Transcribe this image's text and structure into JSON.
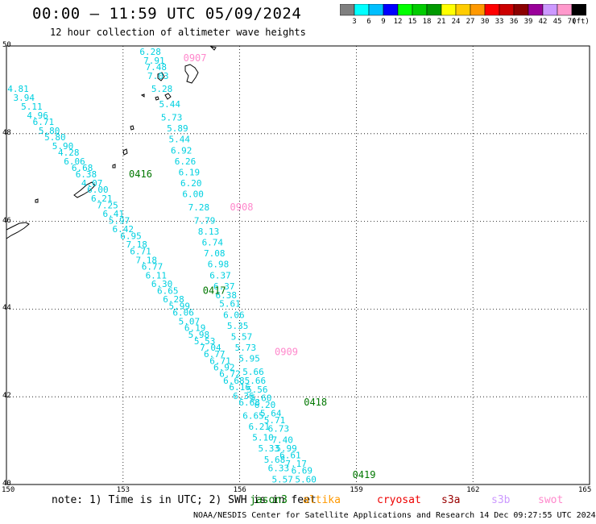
{
  "header": {
    "title": "00:00 – 11:59 UTC 05/09/2024",
    "subtitle": "12 hour collection of altimeter wave heights"
  },
  "colorbar": {
    "colors": [
      "#7f7f7f",
      "#00ffff",
      "#00bfff",
      "#0000ff",
      "#00ff00",
      "#00cc00",
      "#009900",
      "#ffff00",
      "#ffcc00",
      "#ff9900",
      "#ff0000",
      "#cc0000",
      "#8b0000",
      "#990099",
      "#cc99ff",
      "#ff99cc",
      "#000000"
    ],
    "labels": [
      "3",
      "6",
      "9",
      "12",
      "15",
      "18",
      "21",
      "24",
      "27",
      "30",
      "33",
      "36",
      "39",
      "42",
      "45",
      "70",
      "(ft)"
    ]
  },
  "map": {
    "lon_range": [
      150,
      165
    ],
    "lat_range": [
      40,
      50
    ],
    "x_ticks": [
      "150",
      "153",
      "156",
      "159",
      "162",
      "165"
    ],
    "y_ticks": [
      "50",
      "48",
      "46",
      "44",
      "42",
      "40"
    ],
    "grid_lons": [
      153,
      156,
      159,
      162
    ],
    "grid_lats": [
      48,
      46,
      44,
      42
    ],
    "track_labels": [
      {
        "text": "0907",
        "color": "#ff88cc",
        "lon": 154.55,
        "lat": 49.65
      },
      {
        "text": "0416",
        "color": "#007700",
        "lon": 153.15,
        "lat": 47.0
      },
      {
        "text": "0908",
        "color": "#ff88cc",
        "lon": 155.75,
        "lat": 46.25
      },
      {
        "text": "0417",
        "color": "#007700",
        "lon": 155.05,
        "lat": 44.35
      },
      {
        "text": "0909",
        "color": "#ff88cc",
        "lon": 156.9,
        "lat": 42.95
      },
      {
        "text": "0418",
        "color": "#007700",
        "lon": 157.65,
        "lat": 41.8
      },
      {
        "text": "0419",
        "color": "#007700",
        "lon": 158.9,
        "lat": 40.15
      }
    ],
    "swh_color": "#00d0e0",
    "swh_values": [
      {
        "text": "6.28",
        "lon": 153.7,
        "lat": 49.8
      },
      {
        "text": "7.91",
        "lon": 153.8,
        "lat": 49.6
      },
      {
        "text": "7.48",
        "lon": 153.85,
        "lat": 49.45
      },
      {
        "text": "7.03",
        "lon": 153.9,
        "lat": 49.25
      },
      {
        "text": "5.28",
        "lon": 154.0,
        "lat": 48.95
      },
      {
        "text": "5.44",
        "lon": 154.2,
        "lat": 48.6
      },
      {
        "text": "5.73",
        "lon": 154.25,
        "lat": 48.3
      },
      {
        "text": "5.89",
        "lon": 154.4,
        "lat": 48.05
      },
      {
        "text": "5.44",
        "lon": 154.45,
        "lat": 47.8
      },
      {
        "text": "6.92",
        "lon": 154.5,
        "lat": 47.55
      },
      {
        "text": "6.26",
        "lon": 154.6,
        "lat": 47.3
      },
      {
        "text": "6.19",
        "lon": 154.7,
        "lat": 47.05
      },
      {
        "text": "6.20",
        "lon": 154.75,
        "lat": 46.8
      },
      {
        "text": "6.00",
        "lon": 154.8,
        "lat": 46.55
      },
      {
        "text": "7.28",
        "lon": 154.95,
        "lat": 46.25
      },
      {
        "text": "7.79",
        "lon": 155.1,
        "lat": 45.95
      },
      {
        "text": "8.13",
        "lon": 155.2,
        "lat": 45.7
      },
      {
        "text": "6.74",
        "lon": 155.3,
        "lat": 45.45
      },
      {
        "text": "7.08",
        "lon": 155.35,
        "lat": 45.2
      },
      {
        "text": "6.98",
        "lon": 155.45,
        "lat": 44.95
      },
      {
        "text": "6.37",
        "lon": 155.5,
        "lat": 44.7
      },
      {
        "text": "6.37",
        "lon": 155.6,
        "lat": 44.45
      },
      {
        "text": "6.38",
        "lon": 155.65,
        "lat": 44.25
      },
      {
        "text": "5.61",
        "lon": 155.75,
        "lat": 44.05
      },
      {
        "text": "6.06",
        "lon": 155.85,
        "lat": 43.8
      },
      {
        "text": "5.35",
        "lon": 155.95,
        "lat": 43.55
      },
      {
        "text": "5.57",
        "lon": 156.05,
        "lat": 43.3
      },
      {
        "text": "5.73",
        "lon": 156.15,
        "lat": 43.05
      },
      {
        "text": "5.95",
        "lon": 156.25,
        "lat": 42.8
      },
      {
        "text": "5.66",
        "lon": 156.35,
        "lat": 42.5
      },
      {
        "text": "5.66",
        "lon": 156.4,
        "lat": 42.3
      },
      {
        "text": "5.56",
        "lon": 156.45,
        "lat": 42.1
      },
      {
        "text": "5.60",
        "lon": 156.55,
        "lat": 41.9
      },
      {
        "text": "6.20",
        "lon": 156.65,
        "lat": 41.75
      },
      {
        "text": "5.64",
        "lon": 156.8,
        "lat": 41.55
      },
      {
        "text": "5.71",
        "lon": 156.9,
        "lat": 41.4
      },
      {
        "text": "6.73",
        "lon": 157.0,
        "lat": 41.2
      },
      {
        "text": "7.40",
        "lon": 157.1,
        "lat": 40.95
      },
      {
        "text": "5.99",
        "lon": 157.2,
        "lat": 40.75
      },
      {
        "text": "6.61",
        "lon": 157.3,
        "lat": 40.6
      },
      {
        "text": "7.17",
        "lon": 157.45,
        "lat": 40.4
      },
      {
        "text": "6.69",
        "lon": 157.6,
        "lat": 40.25
      },
      {
        "text": "5.60",
        "lon": 157.7,
        "lat": 40.05
      },
      {
        "text": "4.81",
        "lon": 150.3,
        "lat": 48.95
      },
      {
        "text": "3.94",
        "lon": 150.45,
        "lat": 48.75
      },
      {
        "text": "5.11",
        "lon": 150.65,
        "lat": 48.55
      },
      {
        "text": "4.96",
        "lon": 150.8,
        "lat": 48.35
      },
      {
        "text": "6.71",
        "lon": 150.95,
        "lat": 48.2
      },
      {
        "text": "5.80",
        "lon": 151.1,
        "lat": 48.0
      },
      {
        "text": "5.80",
        "lon": 151.25,
        "lat": 47.85
      },
      {
        "text": "5.90",
        "lon": 151.45,
        "lat": 47.65
      },
      {
        "text": "4.28",
        "lon": 151.6,
        "lat": 47.5
      },
      {
        "text": "6.06",
        "lon": 151.75,
        "lat": 47.3
      },
      {
        "text": "6.68",
        "lon": 151.95,
        "lat": 47.15
      },
      {
        "text": "6.38",
        "lon": 152.05,
        "lat": 47.0
      },
      {
        "text": "4.07",
        "lon": 152.2,
        "lat": 46.8
      },
      {
        "text": "6.00",
        "lon": 152.35,
        "lat": 46.65
      },
      {
        "text": "6.21",
        "lon": 152.45,
        "lat": 46.45
      },
      {
        "text": "7.25",
        "lon": 152.6,
        "lat": 46.3
      },
      {
        "text": "6.41",
        "lon": 152.75,
        "lat": 46.1
      },
      {
        "text": "5.97",
        "lon": 152.9,
        "lat": 45.95
      },
      {
        "text": "6.42",
        "lon": 153.0,
        "lat": 45.75
      },
      {
        "text": "6.95",
        "lon": 153.2,
        "lat": 45.6
      },
      {
        "text": "7.18",
        "lon": 153.35,
        "lat": 45.4
      },
      {
        "text": "6.71",
        "lon": 153.45,
        "lat": 45.25
      },
      {
        "text": "7.18",
        "lon": 153.6,
        "lat": 45.05
      },
      {
        "text": "6.77",
        "lon": 153.75,
        "lat": 44.9
      },
      {
        "text": "6.11",
        "lon": 153.85,
        "lat": 44.7
      },
      {
        "text": "6.30",
        "lon": 154.0,
        "lat": 44.5
      },
      {
        "text": "6.65",
        "lon": 154.15,
        "lat": 44.35
      },
      {
        "text": "6.28",
        "lon": 154.3,
        "lat": 44.15
      },
      {
        "text": "5.99",
        "lon": 154.45,
        "lat": 44.0
      },
      {
        "text": "6.06",
        "lon": 154.55,
        "lat": 43.85
      },
      {
        "text": "5.07",
        "lon": 154.7,
        "lat": 43.65
      },
      {
        "text": "6.19",
        "lon": 154.85,
        "lat": 43.5
      },
      {
        "text": "5.98",
        "lon": 154.95,
        "lat": 43.35
      },
      {
        "text": "5.53",
        "lon": 155.1,
        "lat": 43.2
      },
      {
        "text": "7.04",
        "lon": 155.25,
        "lat": 43.05
      },
      {
        "text": "6.77",
        "lon": 155.35,
        "lat": 42.9
      },
      {
        "text": "6.71",
        "lon": 155.5,
        "lat": 42.75
      },
      {
        "text": "6.92",
        "lon": 155.6,
        "lat": 42.6
      },
      {
        "text": "6.72",
        "lon": 155.75,
        "lat": 42.45
      },
      {
        "text": "6.68",
        "lon": 155.85,
        "lat": 42.3
      },
      {
        "text": "6.16",
        "lon": 156.0,
        "lat": 42.15
      },
      {
        "text": "6.36",
        "lon": 156.1,
        "lat": 41.95
      },
      {
        "text": "6.68",
        "lon": 156.25,
        "lat": 41.8
      },
      {
        "text": "6.65",
        "lon": 156.35,
        "lat": 41.5
      },
      {
        "text": "6.21",
        "lon": 156.5,
        "lat": 41.25
      },
      {
        "text": "5.10",
        "lon": 156.6,
        "lat": 41.0
      },
      {
        "text": "5.33",
        "lon": 156.75,
        "lat": 40.75
      },
      {
        "text": "5.68",
        "lon": 156.9,
        "lat": 40.5
      },
      {
        "text": "6.33",
        "lon": 157.0,
        "lat": 40.3
      },
      {
        "text": "5.57",
        "lon": 157.1,
        "lat": 40.05
      }
    ]
  },
  "footer": {
    "note": "note: 1) Time is in UTC; 2) SWH is in feet",
    "missions": [
      {
        "label": "jason3",
        "color": "#007700"
      },
      {
        "label": "altika",
        "color": "#ff9900"
      },
      {
        "label": "cryosat",
        "color": "#ee0000"
      },
      {
        "label": "s3a",
        "color": "#990000"
      },
      {
        "label": "s3b",
        "color": "#cc99ff"
      },
      {
        "label": "swot",
        "color": "#ff88cc"
      }
    ],
    "credit": "NOAA/NESDIS Center for Satellite Applications and Research   14 Dec 09:27:55 UTC 2024"
  }
}
